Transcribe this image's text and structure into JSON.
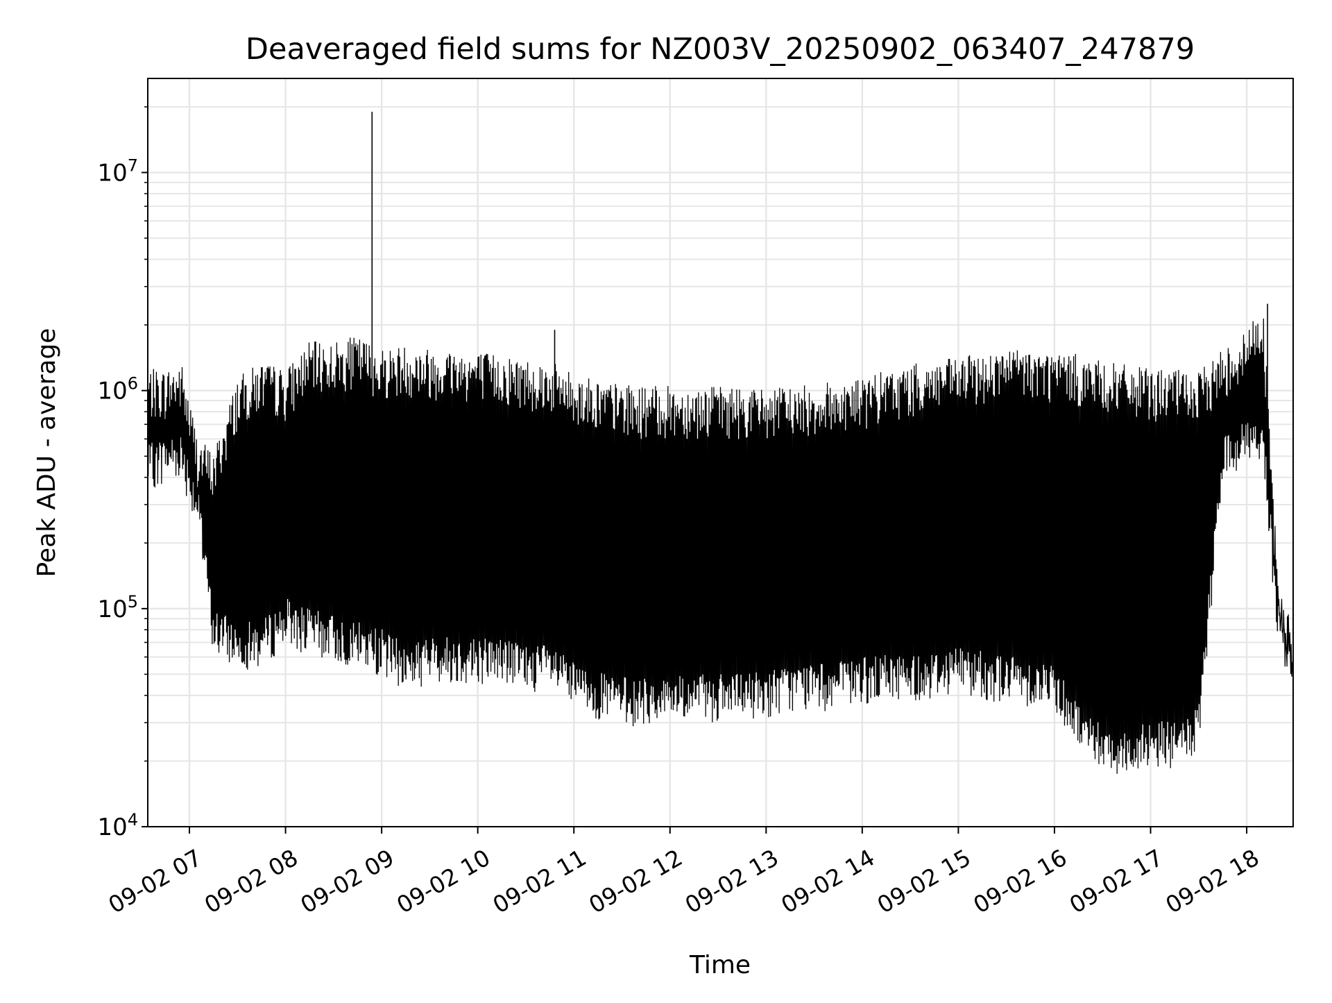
{
  "chart_data": {
    "type": "line",
    "title": "Deaveraged field sums for NZ003V_20250902_063407_247879",
    "xlabel": "Time",
    "ylabel": "Peak ADU - average",
    "yscale": "log",
    "ylim": [
      10000,
      27000000
    ],
    "xlim": [
      "2025-09-02 06:34",
      "2025-09-02 18:29"
    ],
    "grid": true,
    "line_color": "#000000",
    "x_tick_labels": [
      "09-02 07",
      "09-02 08",
      "09-02 09",
      "09-02 10",
      "09-02 11",
      "09-02 12",
      "09-02 13",
      "09-02 14",
      "09-02 15",
      "09-02 16",
      "09-02 17",
      "09-02 18"
    ],
    "x_tick_times": [
      "2025-09-02 07:00",
      "2025-09-02 08:00",
      "2025-09-02 09:00",
      "2025-09-02 10:00",
      "2025-09-02 11:00",
      "2025-09-02 12:00",
      "2025-09-02 13:00",
      "2025-09-02 14:00",
      "2025-09-02 15:00",
      "2025-09-02 16:00",
      "2025-09-02 17:00",
      "2025-09-02 18:00"
    ],
    "y_tick_values": [
      10000,
      100000,
      1000000,
      10000000
    ],
    "y_tick_exponents": [
      "4",
      "5",
      "6",
      "7"
    ],
    "y_tick_base": "10",
    "series": [
      {
        "x": [
          "2025-09-02 06:34",
          "2025-09-02 06:45",
          "2025-09-02 06:55",
          "2025-09-02 07:05",
          "2025-09-02 07:15",
          "2025-09-02 07:30",
          "2025-09-02 07:45",
          "2025-09-02 08:00",
          "2025-09-02 08:15",
          "2025-09-02 08:30",
          "2025-09-02 08:45",
          "2025-09-02 09:00",
          "2025-09-02 09:15",
          "2025-09-02 09:30",
          "2025-09-02 09:45",
          "2025-09-02 10:00",
          "2025-09-02 10:15",
          "2025-09-02 10:30",
          "2025-09-02 10:45",
          "2025-09-02 11:00",
          "2025-09-02 11:20",
          "2025-09-02 11:40",
          "2025-09-02 12:00",
          "2025-09-02 12:20",
          "2025-09-02 12:40",
          "2025-09-02 13:00",
          "2025-09-02 13:20",
          "2025-09-02 13:40",
          "2025-09-02 14:00",
          "2025-09-02 14:20",
          "2025-09-02 14:40",
          "2025-09-02 15:00",
          "2025-09-02 15:20",
          "2025-09-02 15:40",
          "2025-09-02 16:00",
          "2025-09-02 16:15",
          "2025-09-02 16:30",
          "2025-09-02 16:45",
          "2025-09-02 17:00",
          "2025-09-02 17:15",
          "2025-09-02 17:30",
          "2025-09-02 17:45",
          "2025-09-02 18:00",
          "2025-09-02 18:10",
          "2025-09-02 18:20",
          "2025-09-02 18:29"
        ],
        "y_low": [
          450000,
          500000,
          520000,
          300000,
          80000,
          70000,
          70000,
          90000,
          80000,
          75000,
          70000,
          65000,
          55000,
          60000,
          60000,
          60000,
          60000,
          55000,
          55000,
          45000,
          40000,
          38000,
          40000,
          40000,
          40000,
          42000,
          45000,
          45000,
          48000,
          50000,
          50000,
          55000,
          50000,
          48000,
          45000,
          30000,
          24000,
          22000,
          25000,
          24000,
          28000,
          500000,
          600000,
          600000,
          80000,
          60000
        ],
        "y_high": [
          1200000,
          1200000,
          1300000,
          600000,
          500000,
          1100000,
          1300000,
          1200000,
          1600000,
          1600000,
          1700000,
          1500000,
          1550000,
          1500000,
          1500000,
          1450000,
          1400000,
          1350000,
          1300000,
          1150000,
          1050000,
          1000000,
          1000000,
          1000000,
          1000000,
          980000,
          1000000,
          1050000,
          1100000,
          1200000,
          1300000,
          1350000,
          1450000,
          1500000,
          1450000,
          1400000,
          1300000,
          1250000,
          1200000,
          1200000,
          1150000,
          1500000,
          1800000,
          2500000,
          120000,
          80000
        ],
        "spikes": [
          {
            "x": "2025-09-02 08:54",
            "y": 19000000
          },
          {
            "x": "2025-09-02 10:48",
            "y": 1900000
          },
          {
            "x": "2025-09-02 18:13",
            "y": 2500000
          }
        ]
      }
    ]
  }
}
